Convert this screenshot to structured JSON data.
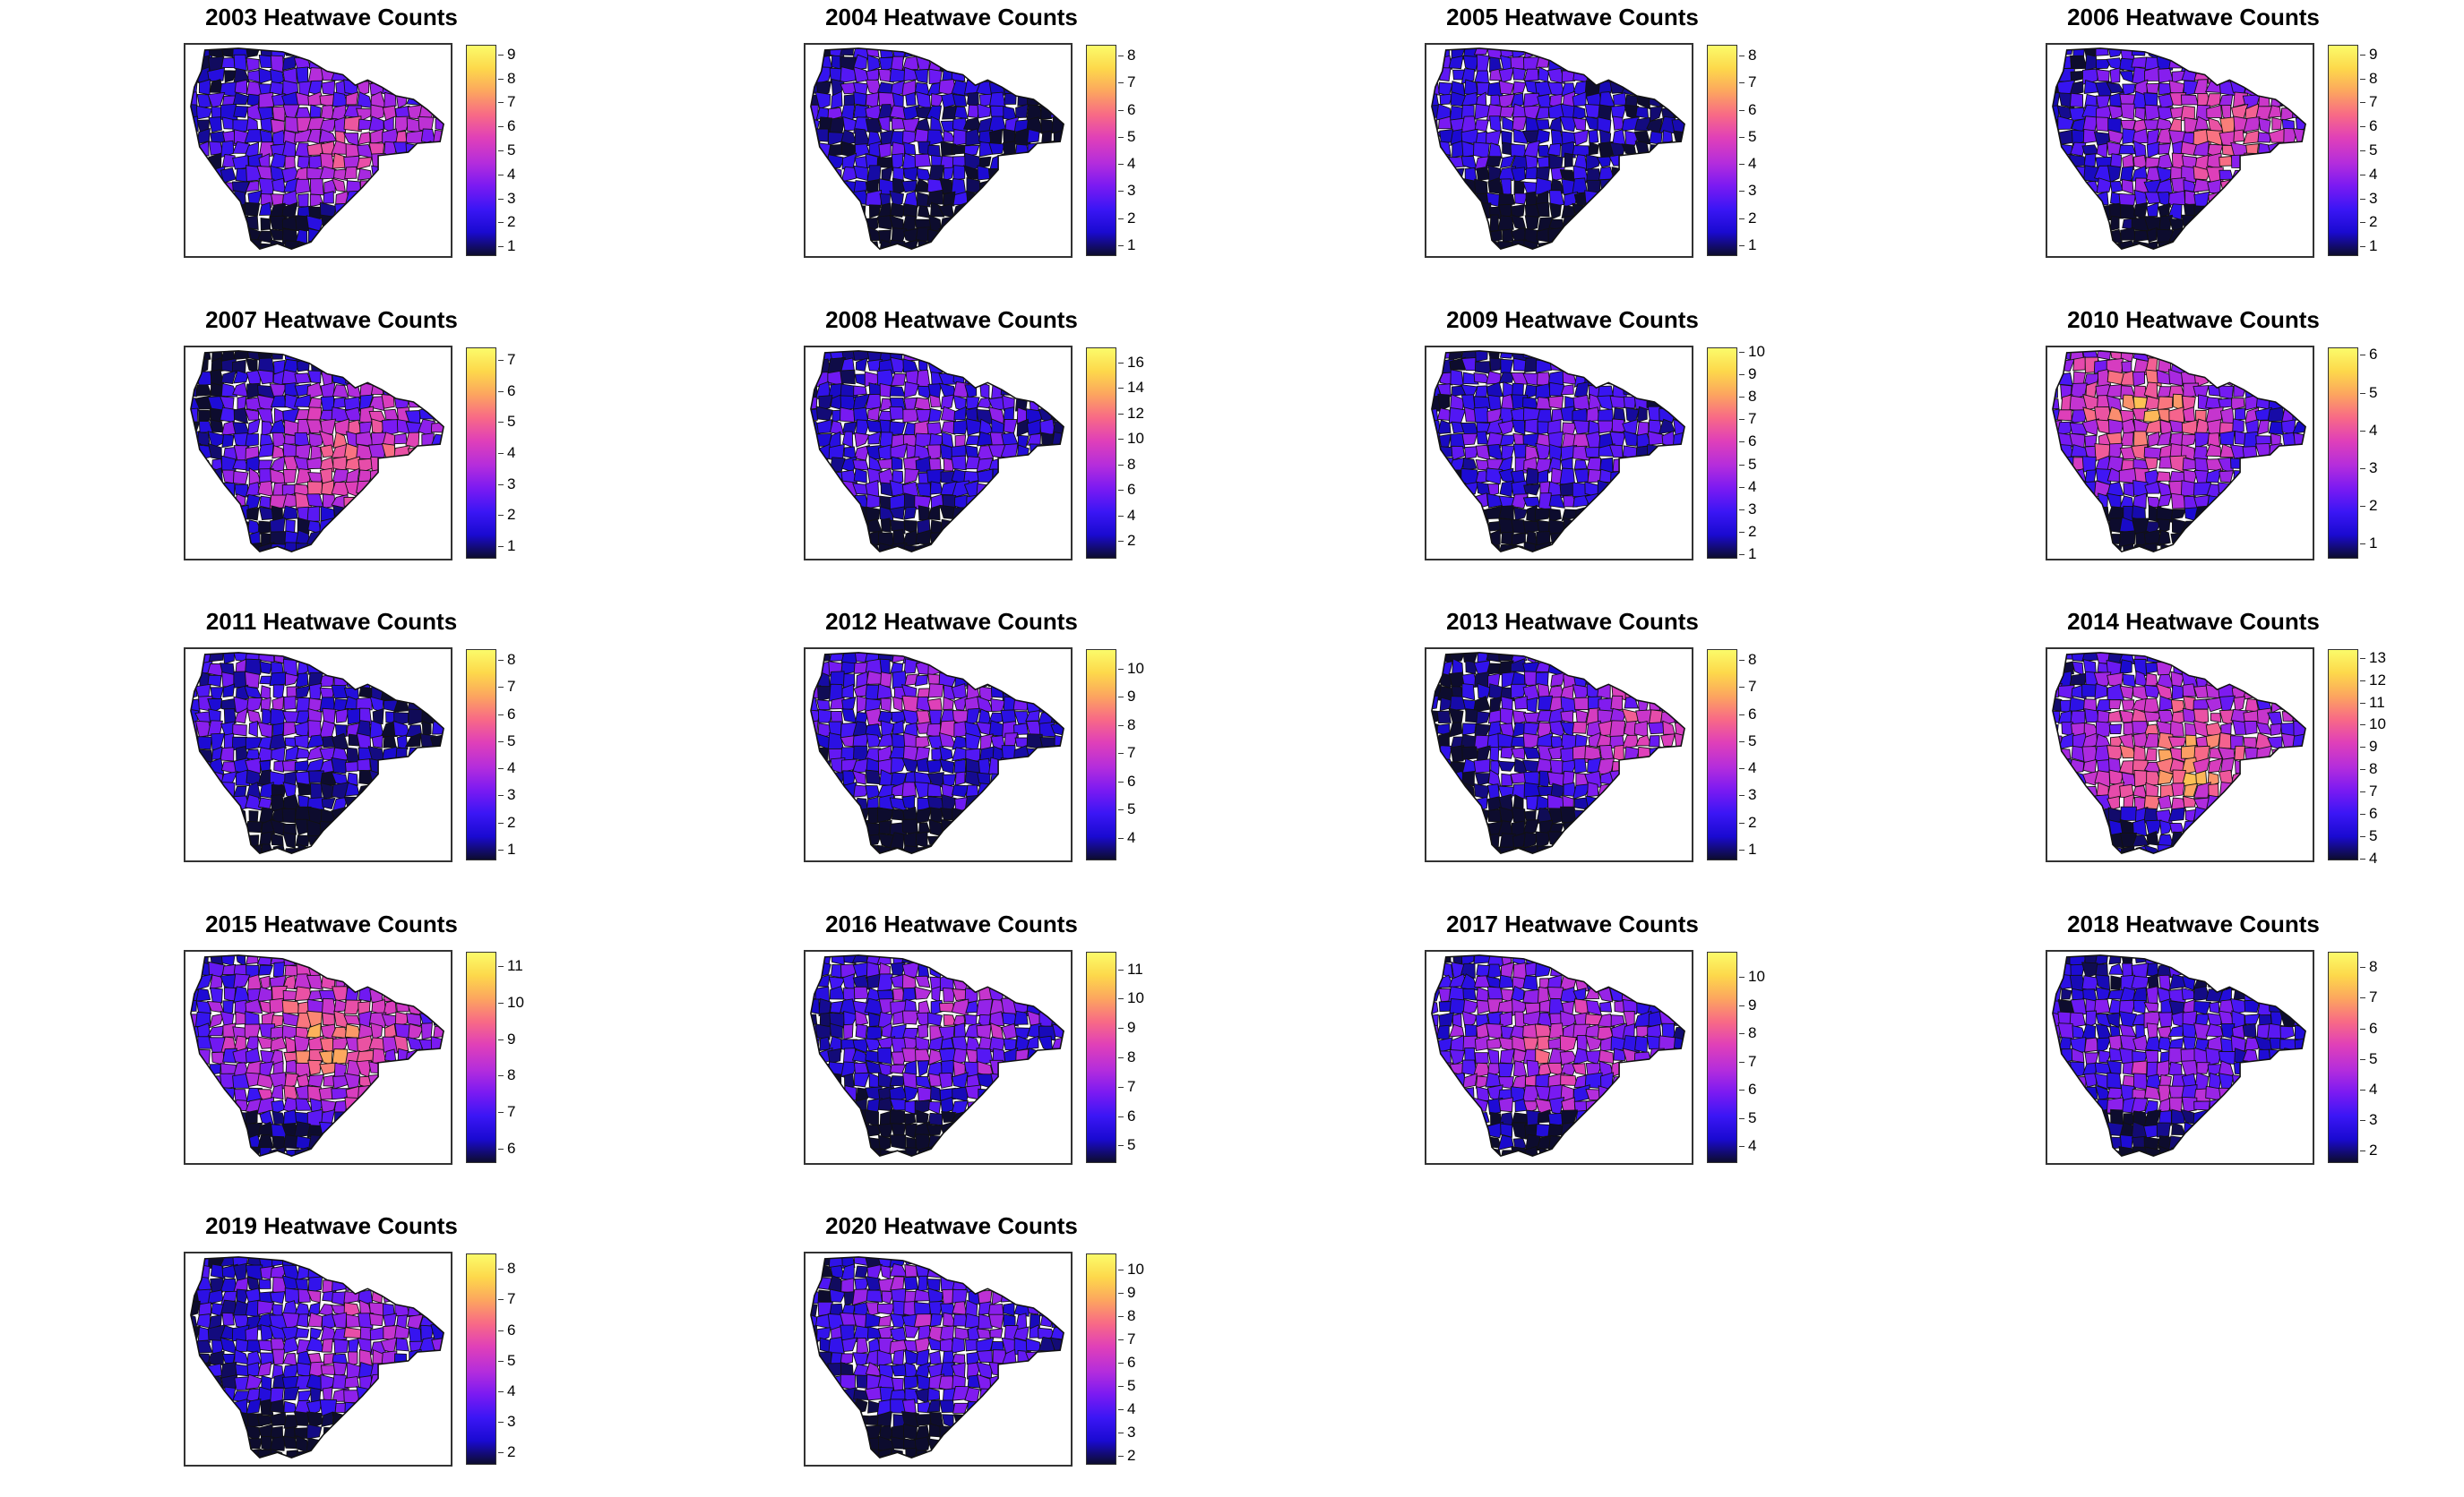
{
  "panels": [
    {
      "year": 2003,
      "title": "2003 Heatwave Counts",
      "min": 0.6,
      "max": 9.4,
      "ticks": [
        1,
        2,
        3,
        4,
        5,
        6,
        7,
        8,
        9
      ]
    },
    {
      "year": 2004,
      "title": "2004 Heatwave Counts",
      "min": 0.6,
      "max": 8.4,
      "ticks": [
        1,
        2,
        3,
        4,
        5,
        6,
        7,
        8
      ]
    },
    {
      "year": 2005,
      "title": "2005 Heatwave Counts",
      "min": 0.6,
      "max": 8.4,
      "ticks": [
        1,
        2,
        3,
        4,
        5,
        6,
        7,
        8
      ]
    },
    {
      "year": 2006,
      "title": "2006 Heatwave Counts",
      "min": 0.6,
      "max": 9.4,
      "ticks": [
        1,
        2,
        3,
        4,
        5,
        6,
        7,
        8,
        9
      ]
    },
    {
      "year": 2007,
      "title": "2007 Heatwave Counts",
      "min": 0.6,
      "max": 7.4,
      "ticks": [
        1,
        2,
        3,
        4,
        5,
        6,
        7
      ]
    },
    {
      "year": 2008,
      "title": "2008 Heatwave Counts",
      "min": 0.6,
      "max": 17.2,
      "ticks": [
        2,
        4,
        6,
        8,
        10,
        12,
        14,
        16
      ]
    },
    {
      "year": 2009,
      "title": "2009 Heatwave Counts",
      "min": 0.8,
      "max": 10.2,
      "ticks": [
        1,
        2,
        3,
        4,
        5,
        6,
        7,
        8,
        9,
        10
      ]
    },
    {
      "year": 2010,
      "title": "2010 Heatwave Counts",
      "min": 0.6,
      "max": 6.2,
      "ticks": [
        1,
        2,
        3,
        4,
        5,
        6
      ]
    },
    {
      "year": 2011,
      "title": "2011 Heatwave Counts",
      "min": 0.6,
      "max": 8.4,
      "ticks": [
        1,
        2,
        3,
        4,
        5,
        6,
        7,
        8
      ]
    },
    {
      "year": 2012,
      "title": "2012 Heatwave Counts",
      "min": 3.2,
      "max": 10.7,
      "ticks": [
        4,
        5,
        6,
        7,
        8,
        9,
        10
      ]
    },
    {
      "year": 2013,
      "title": "2013 Heatwave Counts",
      "min": 0.6,
      "max": 8.4,
      "ticks": [
        1,
        2,
        3,
        4,
        5,
        6,
        7,
        8
      ]
    },
    {
      "year": 2014,
      "title": "2014 Heatwave Counts",
      "min": 3.9,
      "max": 13.4,
      "ticks": [
        4,
        5,
        6,
        7,
        8,
        9,
        10,
        11,
        12,
        13
      ]
    },
    {
      "year": 2015,
      "title": "2015 Heatwave Counts",
      "min": 5.6,
      "max": 11.4,
      "ticks": [
        6,
        7,
        8,
        9,
        10,
        11
      ]
    },
    {
      "year": 2016,
      "title": "2016 Heatwave Counts",
      "min": 4.4,
      "max": 11.6,
      "ticks": [
        5,
        6,
        7,
        8,
        9,
        10,
        11
      ]
    },
    {
      "year": 2017,
      "title": "2017 Heatwave Counts",
      "min": 3.4,
      "max": 10.9,
      "ticks": [
        4,
        5,
        6,
        7,
        8,
        9,
        10
      ]
    },
    {
      "year": 2018,
      "title": "2018 Heatwave Counts",
      "min": 1.6,
      "max": 8.5,
      "ticks": [
        2,
        3,
        4,
        5,
        6,
        7,
        8
      ]
    },
    {
      "year": 2019,
      "title": "2019 Heatwave Counts",
      "min": 1.6,
      "max": 8.5,
      "ticks": [
        2,
        3,
        4,
        5,
        6,
        7,
        8
      ]
    },
    {
      "year": 2020,
      "title": "2020 Heatwave Counts",
      "min": 1.6,
      "max": 10.7,
      "ticks": [
        2,
        3,
        4,
        5,
        6,
        7,
        8,
        9,
        10
      ]
    }
  ],
  "palette": [
    "#0d0c2e",
    "#1a0ad1",
    "#3b16f5",
    "#7a1af2",
    "#b42ddc",
    "#e040b8",
    "#f86a86",
    "#fca55f",
    "#fdd84b",
    "#fbfb6a"
  ]
}
